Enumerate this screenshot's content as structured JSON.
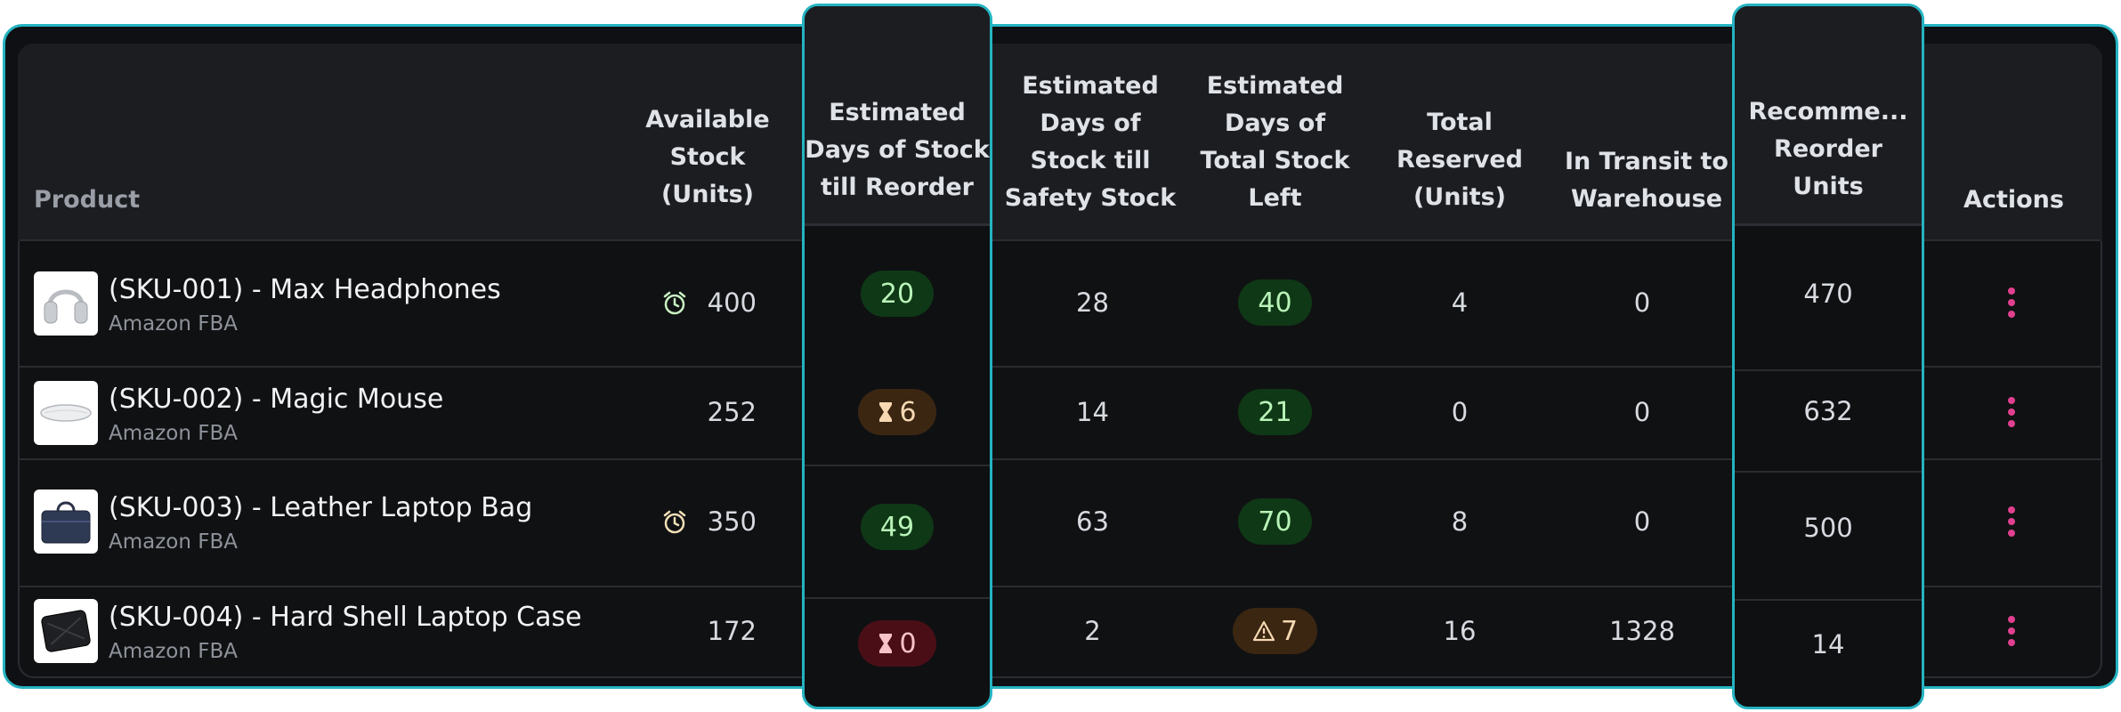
{
  "colors": {
    "accent": "#25b3c1",
    "action": "#e0408f",
    "good": "#b9f3b8",
    "warn": "#f6d9b2",
    "bad": "#f7c3c8"
  },
  "headers": {
    "product": "Product",
    "available": "Available Stock (Units)",
    "days_reorder": "Estimated Days of Stock till Reorder",
    "days_safety": "Estimated Days of Stock till Safety Stock",
    "days_total": "Estimated Days of Total Stock Left",
    "reserved": "Total Reserved (Units)",
    "transit": "In Transit to Warehouse",
    "recommended": "Recomme... Reorder Units",
    "actions": "Actions"
  },
  "rows": [
    {
      "title": "(SKU-001) - Max Headphones",
      "channel": "Amazon FBA",
      "image": "headphones-image",
      "stock_icon": "alarm-clock-icon",
      "available": "400",
      "days_reorder": "20",
      "reorder_status": "good",
      "days_safety": "28",
      "days_total": "40",
      "total_status": "good",
      "reserved": "4",
      "transit": "0",
      "recommended": "470"
    },
    {
      "title": "(SKU-002) - Magic Mouse",
      "channel": "Amazon FBA",
      "image": "mouse-image",
      "stock_icon": "",
      "available": "252",
      "days_reorder": "6",
      "reorder_status": "warning",
      "days_safety": "14",
      "days_total": "21",
      "total_status": "good",
      "reserved": "0",
      "transit": "0",
      "recommended": "632"
    },
    {
      "title": "(SKU-003) - Leather Laptop Bag",
      "channel": "Amazon FBA",
      "image": "laptop-bag-image",
      "stock_icon": "alarm-clock-icon",
      "available": "350",
      "days_reorder": "49",
      "reorder_status": "good",
      "days_safety": "63",
      "days_total": "70",
      "total_status": "good",
      "reserved": "8",
      "transit": "0",
      "recommended": "500"
    },
    {
      "title": "(SKU-004) - Hard Shell Laptop Case",
      "channel": "Amazon FBA",
      "image": "laptop-case-image",
      "stock_icon": "",
      "available": "172",
      "days_reorder": "0",
      "reorder_status": "critical",
      "days_safety": "2",
      "days_total": "7",
      "total_status": "warning",
      "reserved": "16",
      "transit": "1328",
      "recommended": "14"
    }
  ]
}
